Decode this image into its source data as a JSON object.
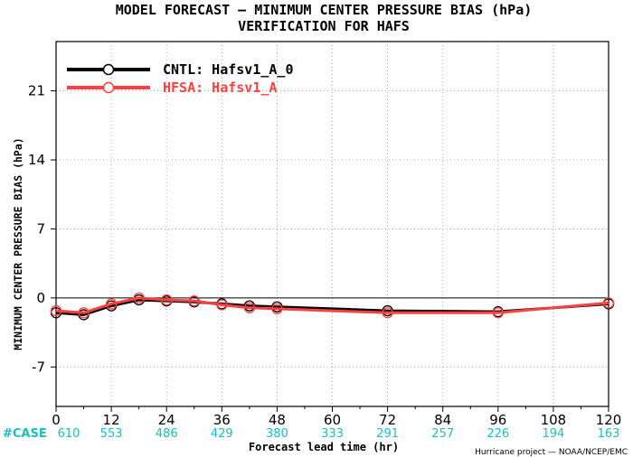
{
  "chart_data": {
    "type": "line",
    "title_line1": "MODEL FORECAST — MINIMUM CENTER PRESSURE BIAS (hPa)",
    "title_line2": "VERIFICATION FOR HAFS",
    "xlabel": "Forecast lead time (hr)",
    "ylabel": "MINIMUM CENTER PRESSURE BIAS (hPa)",
    "xlim": [
      0,
      120
    ],
    "ylim": [
      -11,
      26
    ],
    "xticks": [
      0,
      12,
      24,
      36,
      48,
      60,
      72,
      84,
      96,
      108,
      120
    ],
    "yticks": [
      -7,
      0,
      7,
      14,
      21
    ],
    "grid": true,
    "zero_line": true,
    "legend_position": "top-left",
    "series": [
      {
        "name": "CNTL: Hafsv1_A_0",
        "color": "#000000",
        "x": [
          0,
          6,
          12,
          18,
          24,
          30,
          36,
          42,
          48,
          72,
          96,
          120
        ],
        "y": [
          -1.5,
          -1.7,
          -0.8,
          -0.2,
          -0.3,
          -0.4,
          -0.6,
          -0.8,
          -0.9,
          -1.3,
          -1.4,
          -0.6
        ]
      },
      {
        "name": "HFSA: Hafsv1_A",
        "color": "#ff4040",
        "x": [
          0,
          6,
          12,
          18,
          24,
          30,
          36,
          42,
          48,
          72,
          96,
          120
        ],
        "y": [
          -1.3,
          -1.5,
          -0.6,
          0.0,
          -0.2,
          -0.3,
          -0.7,
          -1.0,
          -1.1,
          -1.5,
          -1.5,
          -0.5
        ]
      }
    ],
    "case_label": "#CASE",
    "case_counts": [
      {
        "x": 0,
        "n": "610"
      },
      {
        "x": 12,
        "n": "553"
      },
      {
        "x": 24,
        "n": "486"
      },
      {
        "x": 36,
        "n": "429"
      },
      {
        "x": 48,
        "n": "380"
      },
      {
        "x": 60,
        "n": "333"
      },
      {
        "x": 72,
        "n": "291"
      },
      {
        "x": 84,
        "n": "257"
      },
      {
        "x": 96,
        "n": "226"
      },
      {
        "x": 108,
        "n": "194"
      },
      {
        "x": 120,
        "n": "163"
      }
    ],
    "credit": "Hurricane project — NOAA/NCEP/EMC"
  }
}
